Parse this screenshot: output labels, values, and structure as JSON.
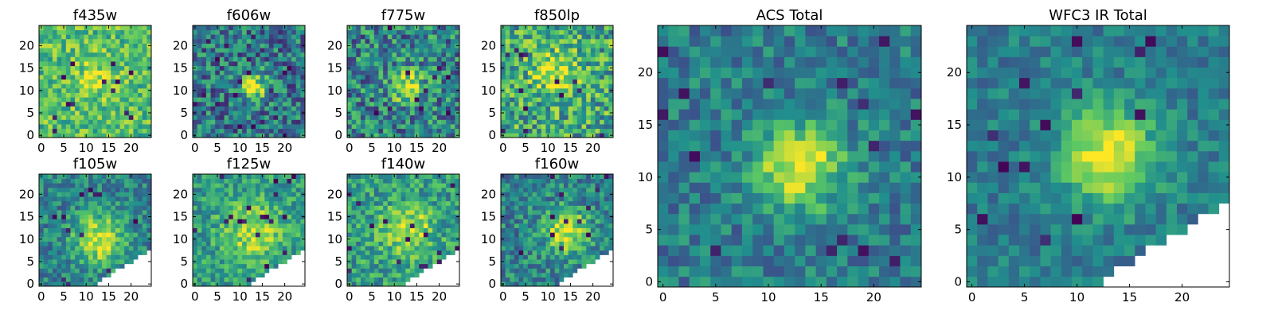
{
  "figure": {
    "colormap": [
      "#440154",
      "#3b528b",
      "#21908d",
      "#5dc963",
      "#fde725"
    ],
    "background_nan": "#ffffff"
  },
  "chart_data": [
    {
      "type": "heatmap",
      "title": "f435w",
      "grid_size": 25,
      "xlim": [
        0,
        24
      ],
      "ylim": [
        0,
        24
      ],
      "xticks": [
        "0",
        "5",
        "10",
        "15",
        "20"
      ],
      "yticks": [
        "0",
        "5",
        "10",
        "15",
        "20"
      ],
      "peak": [
        12,
        13
      ],
      "peak_level": 0.85,
      "base_level": 0.7,
      "noise": 0.22,
      "blob_sigma": 3.5,
      "missing_corner": false
    },
    {
      "type": "heatmap",
      "title": "f606w",
      "grid_size": 25,
      "xlim": [
        0,
        24
      ],
      "ylim": [
        0,
        24
      ],
      "xticks": [
        "0",
        "5",
        "10",
        "15",
        "20"
      ],
      "yticks": [
        "0",
        "5",
        "10",
        "15",
        "20"
      ],
      "peak": [
        13,
        11
      ],
      "peak_level": 0.95,
      "base_level": 0.4,
      "noise": 0.28,
      "blob_sigma": 2.2,
      "missing_corner": false
    },
    {
      "type": "heatmap",
      "title": "f775w",
      "grid_size": 25,
      "xlim": [
        0,
        24
      ],
      "ylim": [
        0,
        24
      ],
      "xticks": [
        "0",
        "5",
        "10",
        "15",
        "20"
      ],
      "yticks": [
        "0",
        "5",
        "10",
        "15",
        "20"
      ],
      "peak": [
        13,
        11
      ],
      "peak_level": 0.95,
      "base_level": 0.45,
      "noise": 0.3,
      "blob_sigma": 2.5,
      "missing_corner": false
    },
    {
      "type": "heatmap",
      "title": "f850lp",
      "grid_size": 25,
      "xlim": [
        0,
        24
      ],
      "ylim": [
        0,
        24
      ],
      "xticks": [
        "0",
        "5",
        "10",
        "15",
        "20"
      ],
      "yticks": [
        "0",
        "5",
        "10",
        "15",
        "20"
      ],
      "peak": [
        12,
        14
      ],
      "peak_level": 0.95,
      "base_level": 0.6,
      "noise": 0.3,
      "blob_sigma": 3.5,
      "missing_corner": false
    },
    {
      "type": "heatmap",
      "title": "f105w",
      "grid_size": 25,
      "xlim": [
        0,
        24
      ],
      "ylim": [
        0,
        24
      ],
      "xticks": [
        "0",
        "5",
        "10",
        "15",
        "20"
      ],
      "yticks": [
        "0",
        "5",
        "10",
        "15",
        "20"
      ],
      "peak": [
        13,
        10
      ],
      "peak_level": 0.95,
      "base_level": 0.45,
      "noise": 0.2,
      "blob_sigma": 4,
      "missing_corner": true
    },
    {
      "type": "heatmap",
      "title": "f125w",
      "grid_size": 25,
      "xlim": [
        0,
        24
      ],
      "ylim": [
        0,
        24
      ],
      "xticks": [
        "0",
        "5",
        "10",
        "15",
        "20"
      ],
      "yticks": [
        "0",
        "5",
        "10",
        "15",
        "20"
      ],
      "peak": [
        13,
        12
      ],
      "peak_level": 0.9,
      "base_level": 0.55,
      "noise": 0.2,
      "blob_sigma": 4.5,
      "missing_corner": true
    },
    {
      "type": "heatmap",
      "title": "f140w",
      "grid_size": 25,
      "xlim": [
        0,
        24
      ],
      "ylim": [
        0,
        24
      ],
      "xticks": [
        "0",
        "5",
        "10",
        "15",
        "20"
      ],
      "yticks": [
        "0",
        "5",
        "10",
        "15",
        "20"
      ],
      "peak": [
        13,
        12
      ],
      "peak_level": 0.92,
      "base_level": 0.55,
      "noise": 0.22,
      "blob_sigma": 4,
      "missing_corner": true
    },
    {
      "type": "heatmap",
      "title": "f160w",
      "grid_size": 25,
      "xlim": [
        0,
        24
      ],
      "ylim": [
        0,
        24
      ],
      "xticks": [
        "0",
        "5",
        "10",
        "15",
        "20"
      ],
      "yticks": [
        "0",
        "5",
        "10",
        "15",
        "20"
      ],
      "peak": [
        14,
        12
      ],
      "peak_level": 0.95,
      "base_level": 0.45,
      "noise": 0.22,
      "blob_sigma": 3.5,
      "missing_corner": true
    },
    {
      "type": "heatmap",
      "title": "ACS Total",
      "grid_size": 25,
      "xlim": [
        0,
        24
      ],
      "ylim": [
        0,
        24
      ],
      "xticks": [
        "0",
        "5",
        "10",
        "15",
        "20"
      ],
      "yticks": [
        "0",
        "5",
        "10",
        "15",
        "20"
      ],
      "peak": [
        13,
        11
      ],
      "peak_level": 1.0,
      "base_level": 0.42,
      "noise": 0.18,
      "blob_sigma": 2.8,
      "missing_corner": false
    },
    {
      "type": "heatmap",
      "title": "WFC3 IR Total",
      "grid_size": 25,
      "xlim": [
        0,
        24
      ],
      "ylim": [
        0,
        24
      ],
      "xticks": [
        "0",
        "5",
        "10",
        "15",
        "20"
      ],
      "yticks": [
        "0",
        "5",
        "10",
        "15",
        "20"
      ],
      "peak": [
        13,
        12
      ],
      "peak_level": 1.0,
      "base_level": 0.42,
      "noise": 0.14,
      "blob_sigma": 3.2,
      "missing_corner": true
    }
  ]
}
